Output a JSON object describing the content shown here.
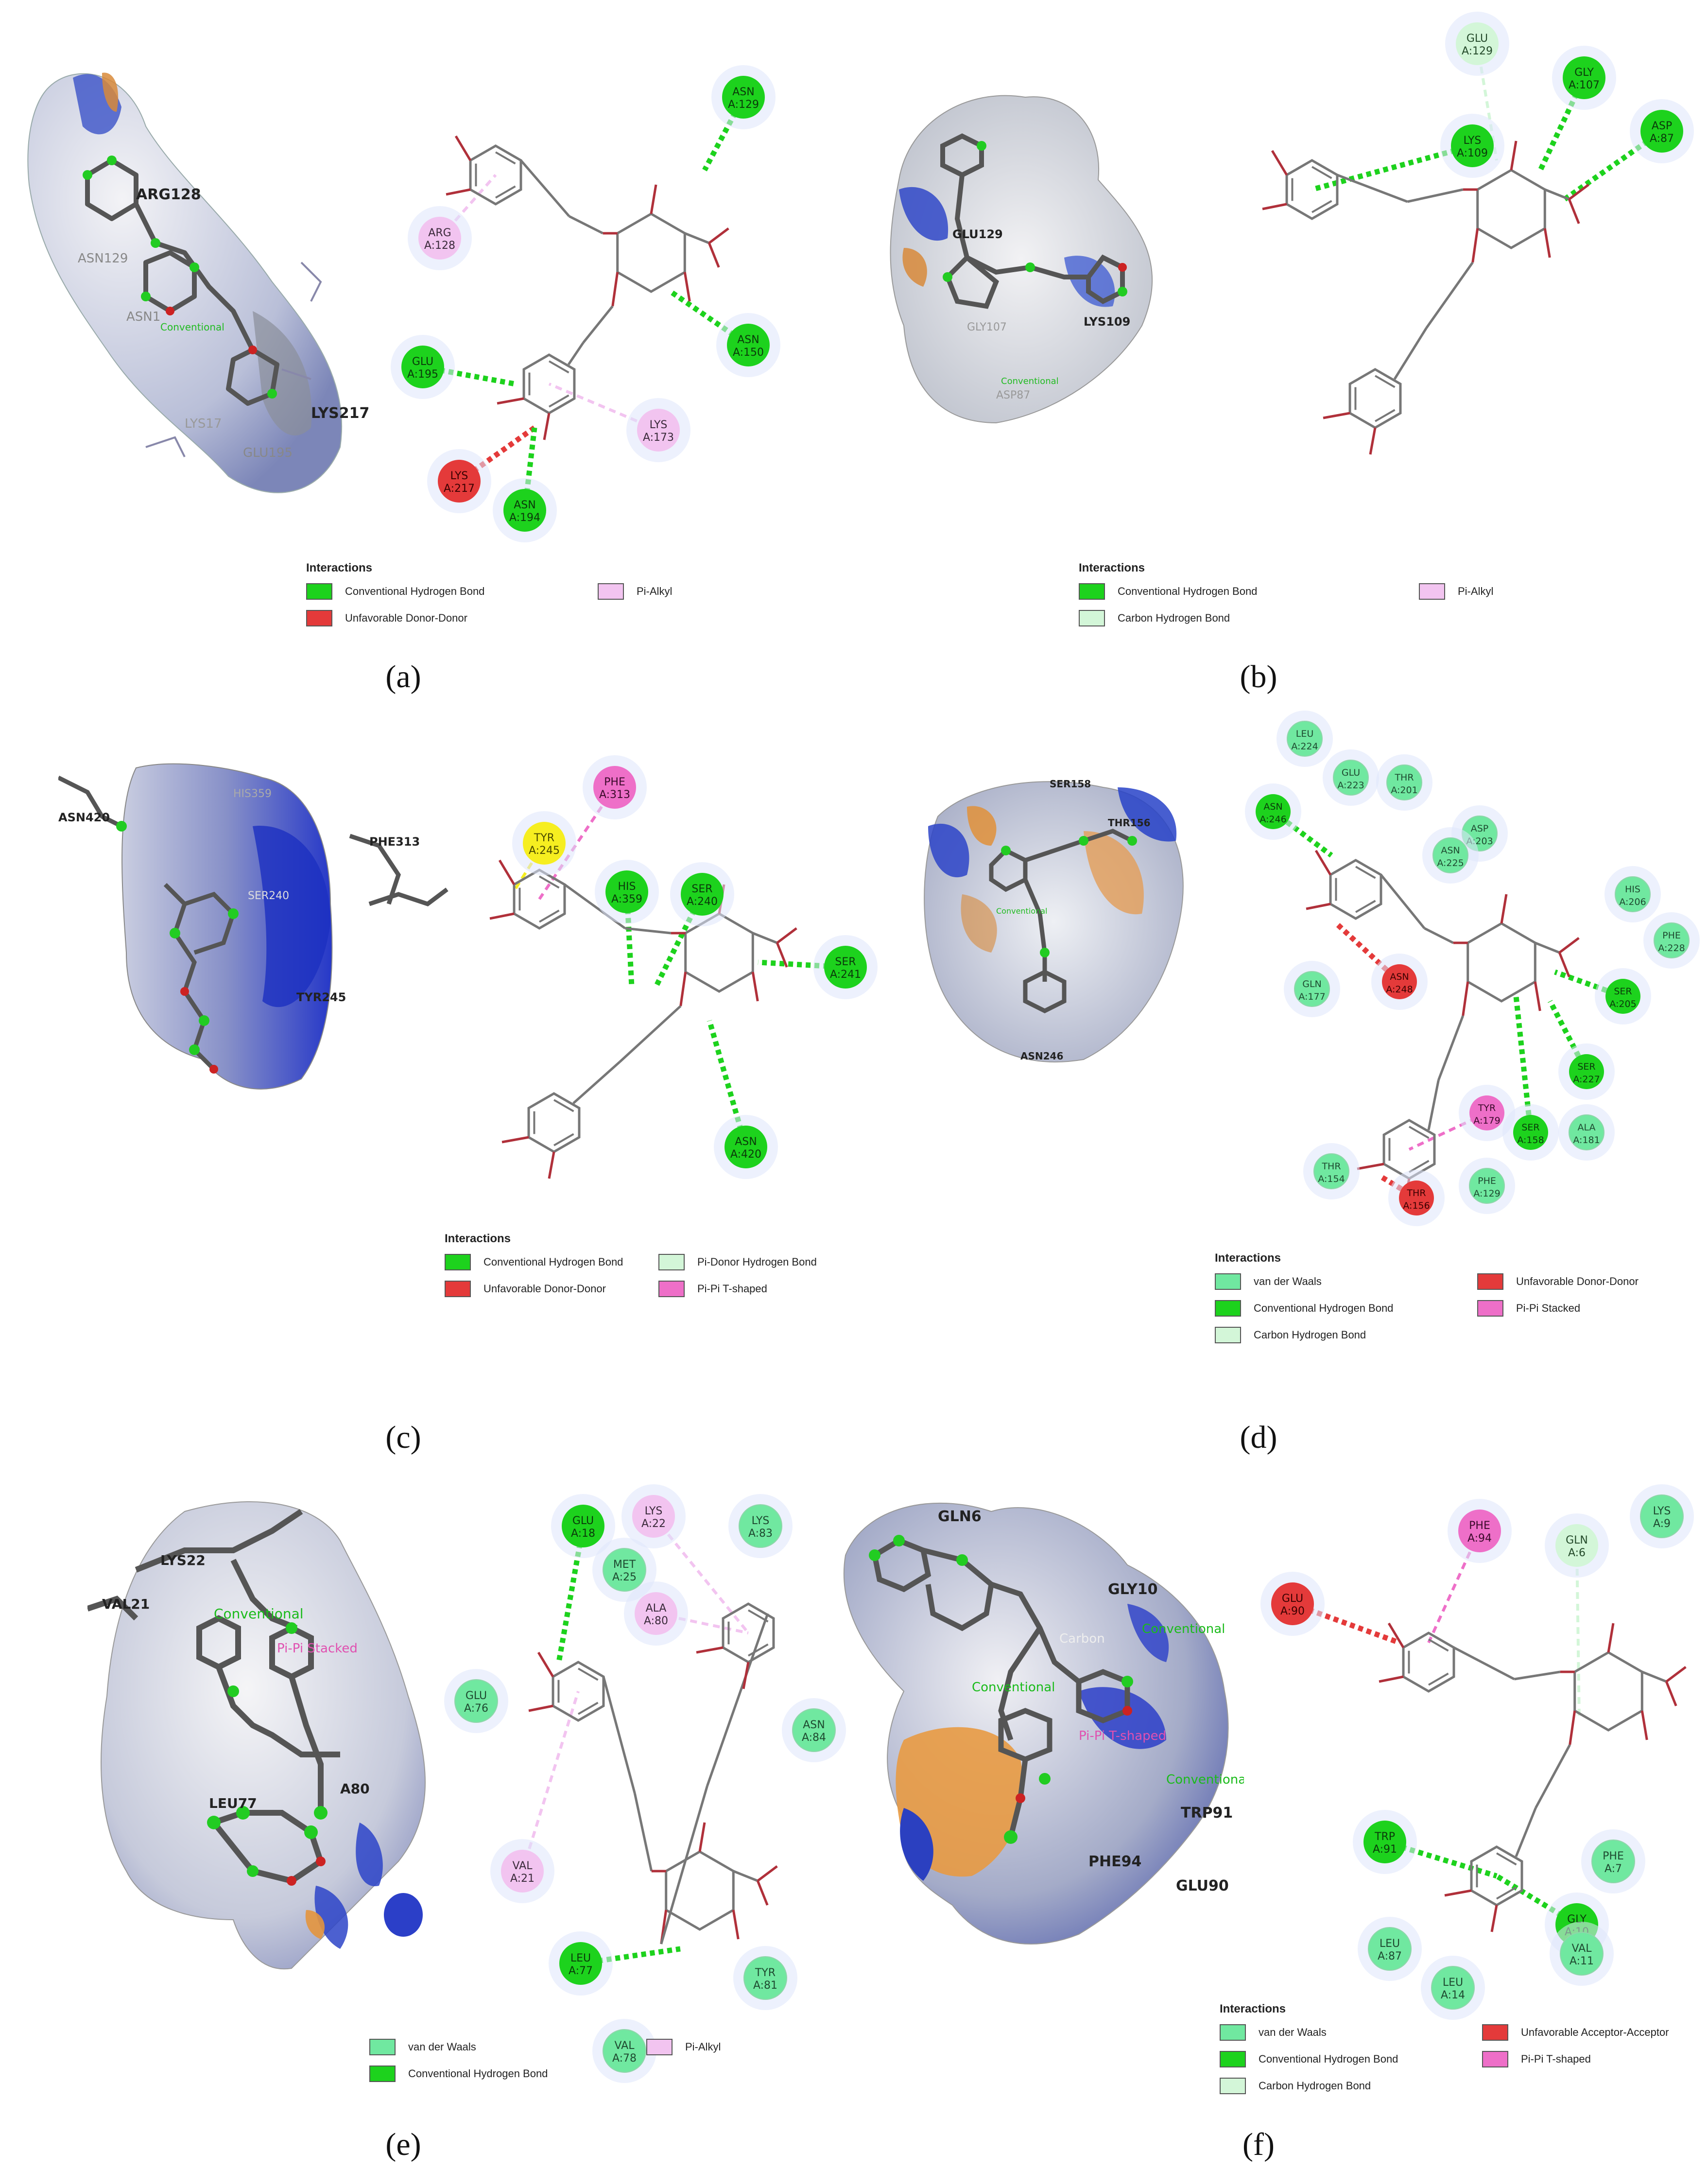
{
  "colors": {
    "conventional_h_bond": "#1dd21d",
    "unfavorable": "#e43a3a",
    "pi_alkyl": "#f2c4f0",
    "carbon_h_bond": "#d3f6d8",
    "van_der_waals": "#70e8a0",
    "pi_pi": "#ee6fc8",
    "pi_donor_yellow": "#f6ee20",
    "ligand_bond": "#b0303a"
  },
  "panels": [
    {
      "label": "(a)",
      "letter": "a"
    },
    {
      "label": "(b)",
      "letter": "b"
    },
    {
      "label": "(c)",
      "letter": "c"
    },
    {
      "label": "(d)",
      "letter": "d"
    },
    {
      "label": "(e)",
      "letter": "e"
    },
    {
      "label": "(f)",
      "letter": "f"
    }
  ],
  "surface_labels": {
    "a": [
      "ARG128",
      "LYS217",
      "ASN129",
      "ASN1",
      "LYS17",
      "GLU195",
      "Conventional"
    ],
    "b": [
      "GLU129",
      "LYS109",
      "GLY107",
      "ASP87",
      "Conventional"
    ],
    "c": [
      "ASN420",
      "PHE313",
      "SER240",
      "TYR245",
      "HIS359"
    ],
    "d": [
      "SER158",
      "THR156",
      "ASN246",
      "Conventional"
    ],
    "e": [
      "LYS22",
      "VAL21",
      "Conventional",
      "Pi-Pi Stacked",
      "A80",
      "LEU77"
    ],
    "f": [
      "GLN6",
      "GLY10",
      "Conventional",
      "Carbon",
      "Pi-Pi T-shaped",
      "TRP91",
      "PHE94",
      "GLU90",
      "Conventional",
      "Conventional"
    ]
  },
  "residues": {
    "a": [
      {
        "name": "ASN",
        "num": "A:129",
        "type": "hbond"
      },
      {
        "name": "ARG",
        "num": "A:128",
        "type": "pialkyl"
      },
      {
        "name": "ASN",
        "num": "A:150",
        "type": "hbond"
      },
      {
        "name": "GLU",
        "num": "A:195",
        "type": "hbond"
      },
      {
        "name": "LYS",
        "num": "A:173",
        "type": "pialkyl"
      },
      {
        "name": "LYS",
        "num": "A:217",
        "type": "unfav"
      },
      {
        "name": "ASN",
        "num": "A:194",
        "type": "hbond"
      }
    ],
    "b": [
      {
        "name": "GLU",
        "num": "A:129",
        "type": "carbon"
      },
      {
        "name": "GLY",
        "num": "A:107",
        "type": "hbond"
      },
      {
        "name": "ASP",
        "num": "A:87",
        "type": "hbond"
      },
      {
        "name": "LYS",
        "num": "A:109",
        "type": "hbond"
      }
    ],
    "c": [
      {
        "name": "PHE",
        "num": "A:313",
        "type": "pipi"
      },
      {
        "name": "TYR",
        "num": "A:245",
        "type": "yellow"
      },
      {
        "name": "HIS",
        "num": "A:359",
        "type": "hbond"
      },
      {
        "name": "SER",
        "num": "A:240",
        "type": "hbond"
      },
      {
        "name": "SER",
        "num": "A:241",
        "type": "hbond"
      },
      {
        "name": "ASN",
        "num": "A:420",
        "type": "hbond"
      }
    ],
    "d": [
      {
        "name": "LEU",
        "num": "A:224",
        "type": "vdw"
      },
      {
        "name": "GLU",
        "num": "A:223",
        "type": "vdw"
      },
      {
        "name": "THR",
        "num": "A:201",
        "type": "vdw"
      },
      {
        "name": "ASN",
        "num": "A:246",
        "type": "hbond"
      },
      {
        "name": "ASP",
        "num": "A:203",
        "type": "vdw"
      },
      {
        "name": "ASN",
        "num": "A:225",
        "type": "vdw"
      },
      {
        "name": "HIS",
        "num": "A:206",
        "type": "vdw"
      },
      {
        "name": "PHE",
        "num": "A:228",
        "type": "vdw"
      },
      {
        "name": "ASN",
        "num": "A:248",
        "type": "unfav"
      },
      {
        "name": "SER",
        "num": "A:205",
        "type": "hbond"
      },
      {
        "name": "GLN",
        "num": "A:177",
        "type": "vdw"
      },
      {
        "name": "SER",
        "num": "A:227",
        "type": "hbond"
      },
      {
        "name": "TYR",
        "num": "A:179",
        "type": "pipi"
      },
      {
        "name": "SER",
        "num": "A:158",
        "type": "hbond"
      },
      {
        "name": "ALA",
        "num": "A:181",
        "type": "vdw"
      },
      {
        "name": "THR",
        "num": "A:154",
        "type": "vdw"
      },
      {
        "name": "PHE",
        "num": "A:129",
        "type": "vdw"
      },
      {
        "name": "THR",
        "num": "A:156",
        "type": "unfav"
      }
    ],
    "e": [
      {
        "name": "GLU",
        "num": "A:18",
        "type": "hbond"
      },
      {
        "name": "LYS",
        "num": "A:22",
        "type": "pialkyl"
      },
      {
        "name": "LYS",
        "num": "A:83",
        "type": "vdw"
      },
      {
        "name": "MET",
        "num": "A:25",
        "type": "vdw"
      },
      {
        "name": "ALA",
        "num": "A:80",
        "type": "pialkyl"
      },
      {
        "name": "GLU",
        "num": "A:76",
        "type": "vdw"
      },
      {
        "name": "ASN",
        "num": "A:84",
        "type": "vdw"
      },
      {
        "name": "VAL",
        "num": "A:21",
        "type": "pialkyl"
      },
      {
        "name": "LEU",
        "num": "A:77",
        "type": "hbond"
      },
      {
        "name": "TYR",
        "num": "A:81",
        "type": "vdw"
      },
      {
        "name": "VAL",
        "num": "A:78",
        "type": "vdw"
      }
    ],
    "f": [
      {
        "name": "PHE",
        "num": "A:94",
        "type": "pipi"
      },
      {
        "name": "GLU",
        "num": "A:90",
        "type": "unfav"
      },
      {
        "name": "GLN",
        "num": "A:6",
        "type": "carbon"
      },
      {
        "name": "LYS",
        "num": "A:9",
        "type": "vdw"
      },
      {
        "name": "TRP",
        "num": "A:91",
        "type": "hbond"
      },
      {
        "name": "PHE",
        "num": "A:7",
        "type": "vdw"
      },
      {
        "name": "GLY",
        "num": "A:10",
        "type": "hbond"
      },
      {
        "name": "LEU",
        "num": "A:87",
        "type": "vdw"
      },
      {
        "name": "VAL",
        "num": "A:11",
        "type": "vdw"
      },
      {
        "name": "LEU",
        "num": "A:14",
        "type": "vdw"
      }
    ]
  },
  "legends": {
    "a": {
      "title": "Interactions",
      "items": [
        {
          "label": "Conventional Hydrogen Bond",
          "type": "hbond"
        },
        {
          "label": "Pi-Alkyl",
          "type": "pialkyl"
        },
        {
          "label": "Unfavorable Donor-Donor",
          "type": "unfav"
        }
      ]
    },
    "b": {
      "title": "Interactions",
      "items": [
        {
          "label": "Conventional Hydrogen Bond",
          "type": "hbond"
        },
        {
          "label": "Pi-Alkyl",
          "type": "pialkyl"
        },
        {
          "label": "Carbon Hydrogen Bond",
          "type": "carbon"
        }
      ]
    },
    "c": {
      "title": "Interactions",
      "items": [
        {
          "label": "Conventional Hydrogen Bond",
          "type": "hbond"
        },
        {
          "label": "Pi-Donor Hydrogen Bond",
          "type": "carbon"
        },
        {
          "label": "Unfavorable Donor-Donor",
          "type": "unfav"
        },
        {
          "label": "Pi-Pi T-shaped",
          "type": "pipi"
        }
      ]
    },
    "d": {
      "title": "Interactions",
      "items": [
        {
          "label": "van der Waals",
          "type": "vdw"
        },
        {
          "label": "Unfavorable Donor-Donor",
          "type": "unfav"
        },
        {
          "label": "Conventional Hydrogen Bond",
          "type": "hbond"
        },
        {
          "label": "Pi-Pi Stacked",
          "type": "pipi"
        },
        {
          "label": "Carbon Hydrogen Bond",
          "type": "carbon"
        }
      ]
    },
    "e": {
      "title": "",
      "items": [
        {
          "label": "van der Waals",
          "type": "vdw"
        },
        {
          "label": "Pi-Alkyl",
          "type": "pialkyl"
        },
        {
          "label": "Conventional Hydrogen Bond",
          "type": "hbond"
        }
      ]
    },
    "f": {
      "title": "Interactions",
      "items": [
        {
          "label": "van der Waals",
          "type": "vdw"
        },
        {
          "label": "Unfavorable Acceptor-Acceptor",
          "type": "unfav"
        },
        {
          "label": "Conventional Hydrogen Bond",
          "type": "hbond"
        },
        {
          "label": "Pi-Pi T-shaped",
          "type": "pipi"
        },
        {
          "label": "Carbon Hydrogen Bond",
          "type": "carbon"
        }
      ]
    }
  }
}
